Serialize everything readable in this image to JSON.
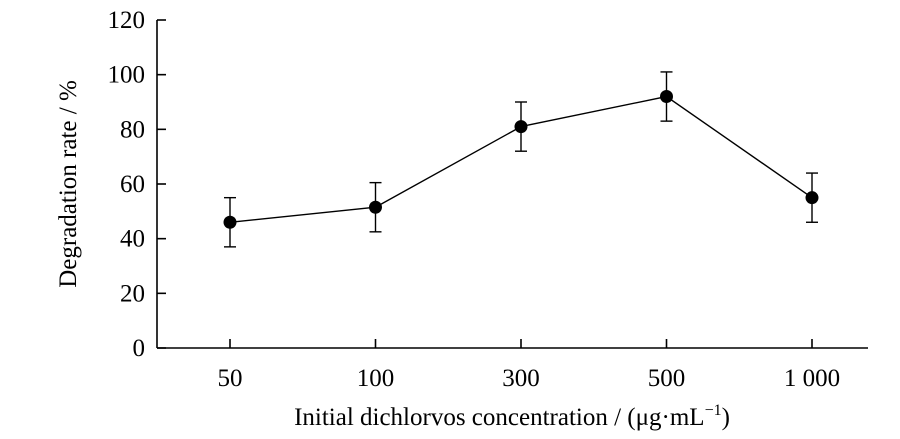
{
  "chart_data": {
    "type": "line",
    "title": "",
    "xlabel": "Initial dichlorvos concentration / (μg·mL",
    "xlabel_superscript": "−1",
    "xlabel_close": ")",
    "ylabel": "Degradation rate / %",
    "categories": [
      "50",
      "100",
      "300",
      "500",
      "1 000"
    ],
    "series": [
      {
        "values": [
          46,
          51.5,
          81,
          92,
          55
        ],
        "error": [
          9,
          9,
          9,
          9,
          9
        ],
        "color": "#000000",
        "marker": "filled-circle"
      }
    ],
    "ylim": [
      0,
      120
    ],
    "yticks": [
      0,
      20,
      40,
      60,
      80,
      100,
      120
    ],
    "grid": false,
    "legend": "none"
  }
}
